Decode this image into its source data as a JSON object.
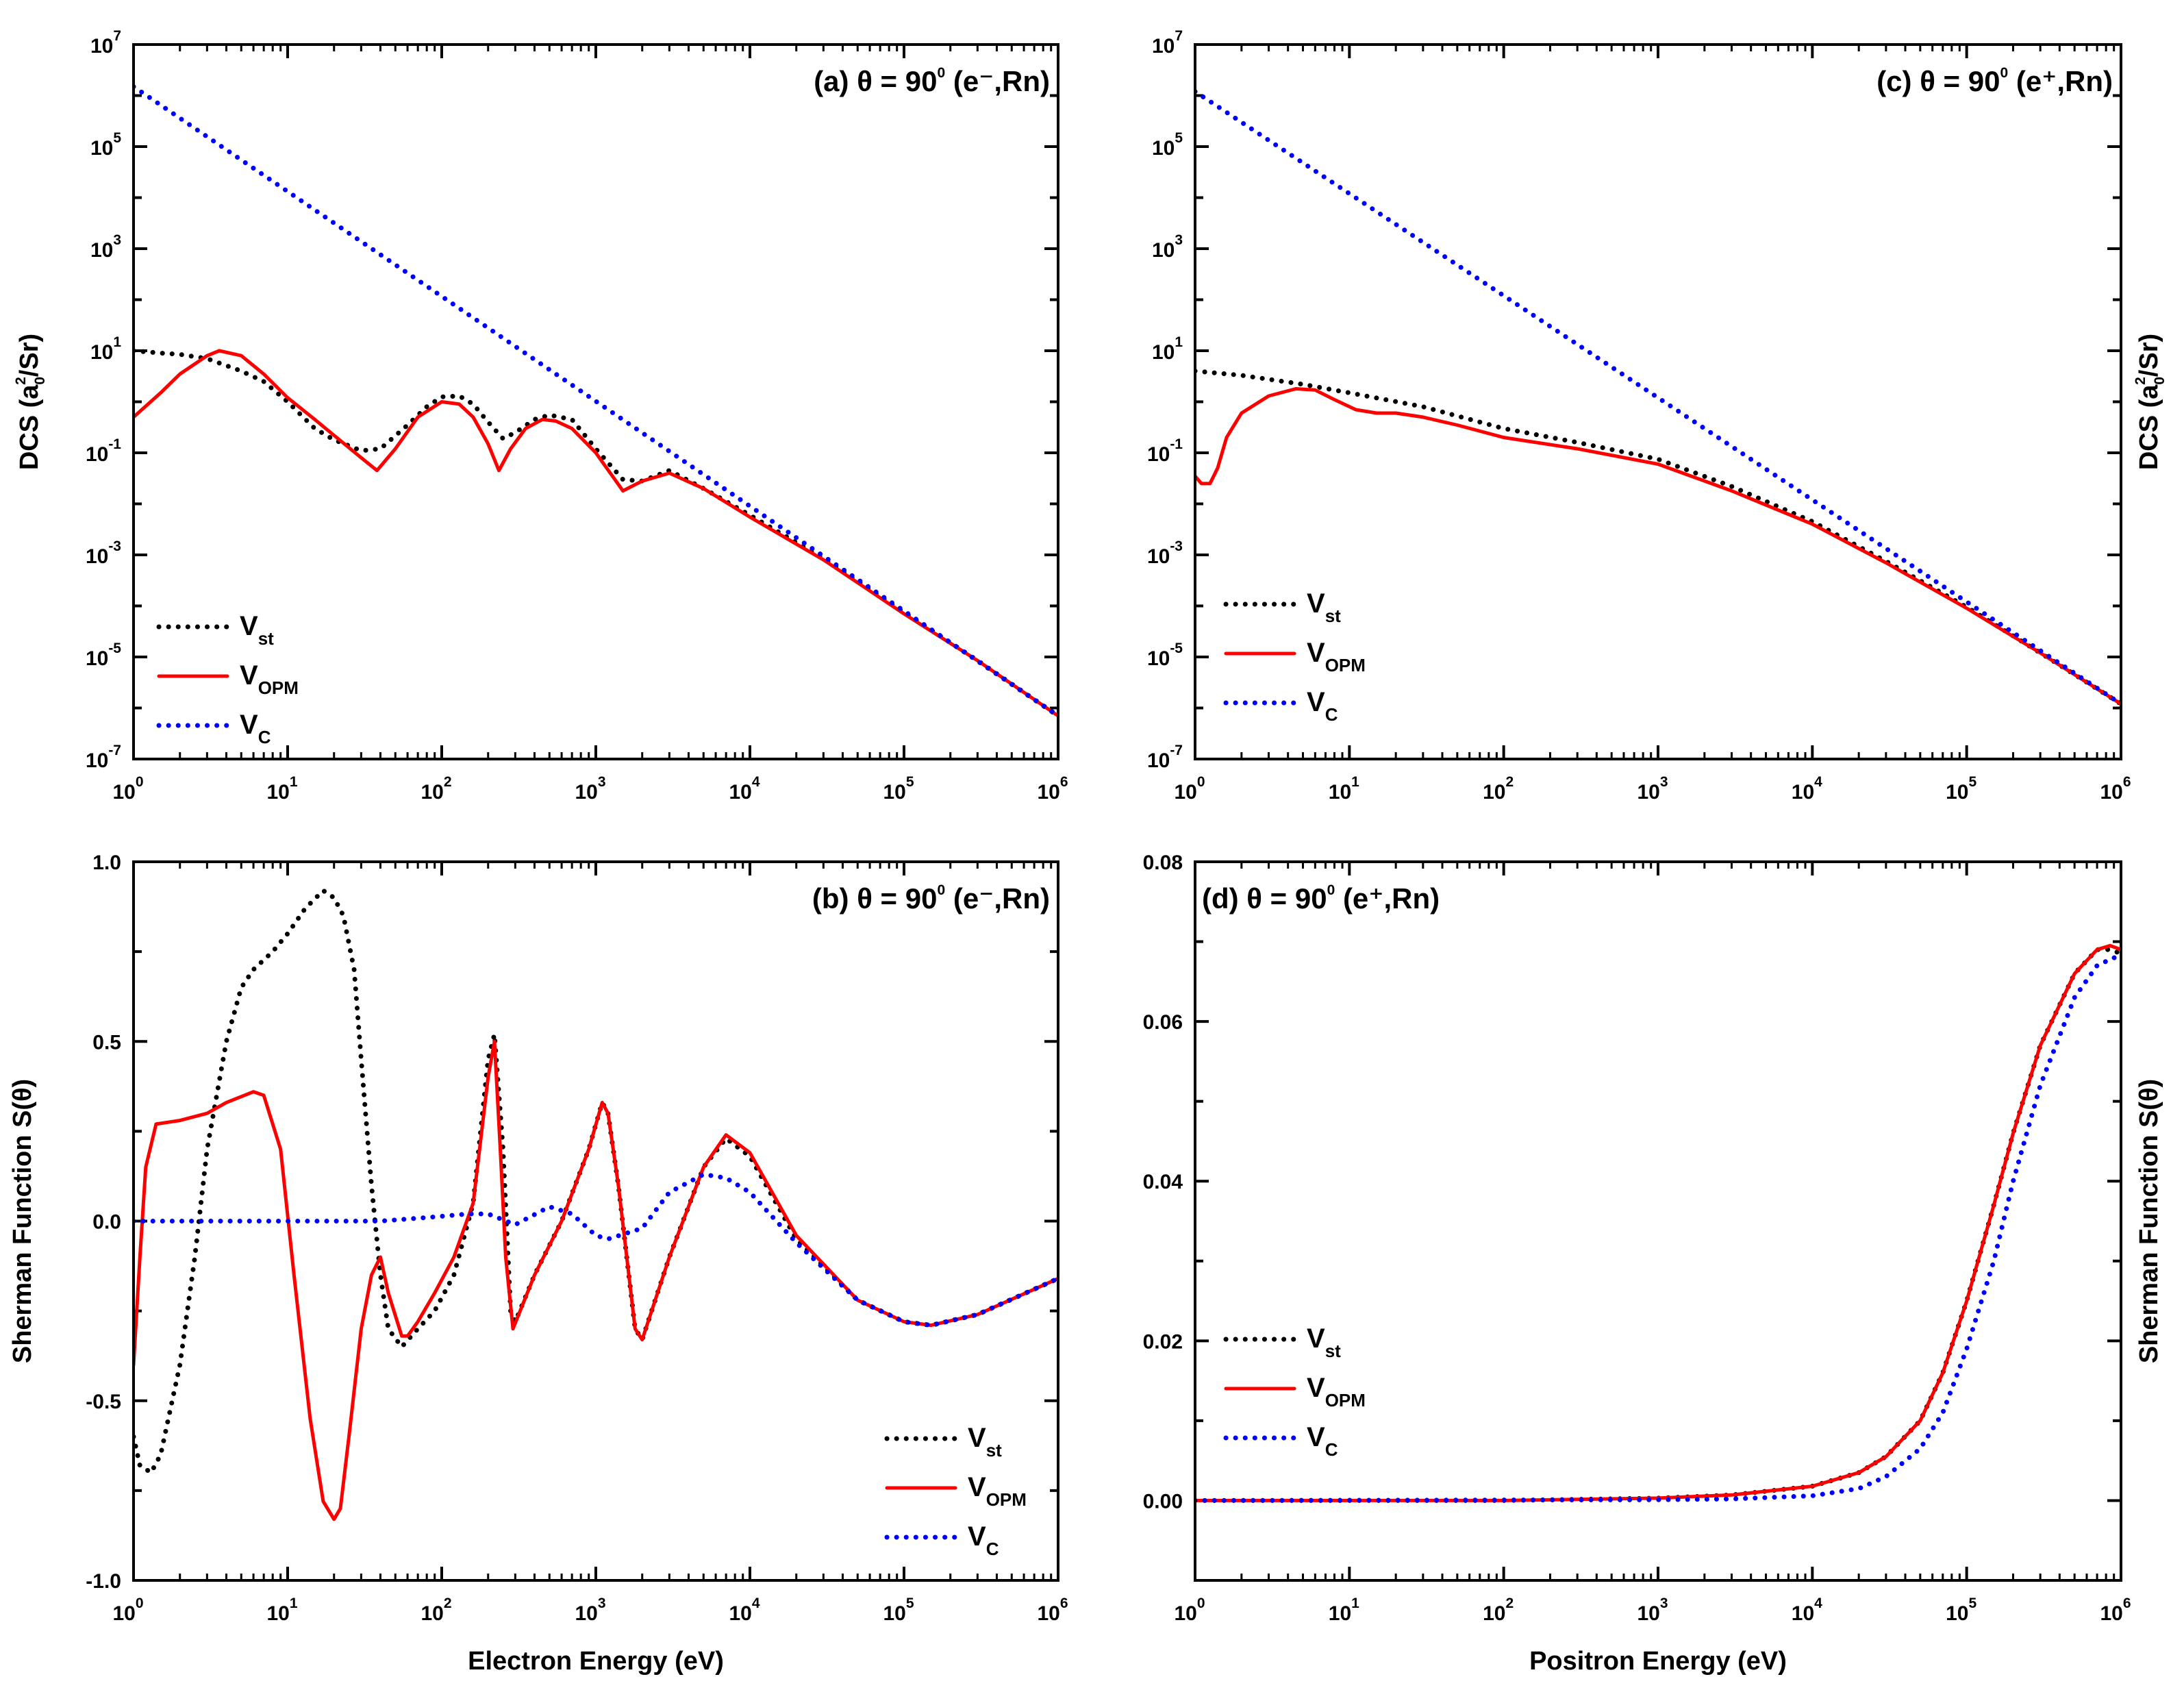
{
  "chart_data": [
    {
      "id": "a",
      "type": "line",
      "title_prefix": "(a) θ = 90",
      "title_sup": "0",
      "title_suffix": " (e⁻,Rn)",
      "xlabel": "",
      "ylabel": "DCS (a",
      "ylabel_sub": "0",
      "ylabel_sup": "2",
      "ylabel_end": "/Sr)",
      "x_scale": "log",
      "y_scale": "log",
      "xlim": [
        1,
        1000000
      ],
      "ylim": [
        1e-07,
        10000000
      ],
      "x_ticks": [
        {
          "base": "10",
          "exp": "0"
        },
        {
          "base": "10",
          "exp": "1"
        },
        {
          "base": "10",
          "exp": "2"
        },
        {
          "base": "10",
          "exp": "3"
        },
        {
          "base": "10",
          "exp": "4"
        },
        {
          "base": "10",
          "exp": "5"
        },
        {
          "base": "10",
          "exp": "6"
        }
      ],
      "y_ticks": [
        {
          "base": "10",
          "exp": "-7"
        },
        {
          "base": "10",
          "exp": "-5"
        },
        {
          "base": "10",
          "exp": "-3"
        },
        {
          "base": "10",
          "exp": "-1"
        },
        {
          "base": "10",
          "exp": "1"
        },
        {
          "base": "10",
          "exp": "3"
        },
        {
          "base": "10",
          "exp": "5"
        },
        {
          "base": "10",
          "exp": "7"
        }
      ],
      "legend_position": "bottom-left",
      "series": [
        {
          "name": "V",
          "sub": "st",
          "color": "#000000",
          "style": "dotted",
          "x": [
            1,
            1.5,
            2,
            3,
            5,
            7,
            10,
            15,
            20,
            30,
            40,
            60,
            80,
            100,
            130,
            160,
            200,
            250,
            300,
            400,
            500,
            700,
            1000,
            1500,
            2000,
            3000,
            5000,
            10000,
            30000,
            100000,
            300000,
            1000000
          ],
          "y": [
            10,
            9,
            8.5,
            7,
            4,
            2.5,
            1,
            0.3,
            0.18,
            0.11,
            0.12,
            0.35,
            0.8,
            1.25,
            1.3,
            0.9,
            0.4,
            0.19,
            0.25,
            0.45,
            0.55,
            0.45,
            0.12,
            0.03,
            0.028,
            0.045,
            0.02,
            0.006,
            0.00085,
            7.5e-05,
            8.5e-06,
            7e-07
          ]
        },
        {
          "name": "V",
          "sub": "OPM",
          "color": "#ff0000",
          "style": "solid",
          "x": [
            1,
            1.5,
            2,
            3,
            3.6,
            5,
            7,
            10,
            15,
            20,
            30,
            38,
            50,
            70,
            100,
            130,
            160,
            200,
            235,
            280,
            350,
            450,
            550,
            700,
            1000,
            1500,
            2000,
            3000,
            5000,
            10000,
            30000,
            100000,
            300000,
            1000000
          ],
          "y": [
            0.5,
            1.5,
            3.5,
            8,
            10,
            8,
            3.5,
            1.2,
            0.45,
            0.22,
            0.08,
            0.045,
            0.12,
            0.5,
            1,
            0.9,
            0.5,
            0.15,
            0.045,
            0.12,
            0.3,
            0.45,
            0.42,
            0.3,
            0.1,
            0.018,
            0.028,
            0.04,
            0.02,
            0.0055,
            0.0008,
            7e-05,
            8.5e-06,
            7e-07
          ]
        },
        {
          "name": "V",
          "sub": "C",
          "color": "#0000ff",
          "style": "dotted",
          "x": [
            1,
            1000000
          ],
          "y": [
            1500000,
            7e-07
          ]
        }
      ]
    },
    {
      "id": "c",
      "type": "line",
      "title_prefix": "(c) θ = 90",
      "title_sup": "0",
      "title_suffix": " (e⁺,Rn)",
      "xlabel": "",
      "ylabel": "DCS (a",
      "ylabel_sub": "0",
      "ylabel_sup": "2",
      "ylabel_end": "/Sr)",
      "x_scale": "log",
      "y_scale": "log",
      "xlim": [
        1,
        1000000
      ],
      "ylim": [
        1e-07,
        10000000
      ],
      "x_ticks": [
        {
          "base": "10",
          "exp": "0"
        },
        {
          "base": "10",
          "exp": "1"
        },
        {
          "base": "10",
          "exp": "2"
        },
        {
          "base": "10",
          "exp": "3"
        },
        {
          "base": "10",
          "exp": "4"
        },
        {
          "base": "10",
          "exp": "5"
        },
        {
          "base": "10",
          "exp": "6"
        }
      ],
      "y_ticks": [
        {
          "base": "10",
          "exp": "-7"
        },
        {
          "base": "10",
          "exp": "-5"
        },
        {
          "base": "10",
          "exp": "-3"
        },
        {
          "base": "10",
          "exp": "-1"
        },
        {
          "base": "10",
          "exp": "1"
        },
        {
          "base": "10",
          "exp": "3"
        },
        {
          "base": "10",
          "exp": "5"
        },
        {
          "base": "10",
          "exp": "7"
        }
      ],
      "legend_position": "bottom-left",
      "series": [
        {
          "name": "V",
          "sub": "st",
          "color": "#000000",
          "style": "dotted",
          "x": [
            1,
            2,
            5,
            10,
            30,
            100,
            300,
            1000,
            3000,
            10000,
            30000,
            100000,
            300000,
            1000000
          ],
          "y": [
            4,
            3.3,
            2.2,
            1.5,
            0.8,
            0.3,
            0.16,
            0.075,
            0.022,
            0.0045,
            0.00075,
            9.5e-05,
            1.2e-05,
            1.2e-06
          ]
        },
        {
          "name": "V",
          "sub": "OPM",
          "color": "#ff0000",
          "style": "solid",
          "x": [
            1,
            1.1,
            1.25,
            1.4,
            1.6,
            2,
            3,
            4.5,
            6,
            8,
            11,
            15,
            20,
            30,
            50,
            100,
            300,
            1000,
            3000,
            10000,
            30000,
            100000,
            300000,
            1000000
          ],
          "y": [
            0.035,
            0.025,
            0.025,
            0.05,
            0.2,
            0.6,
            1.3,
            1.8,
            1.7,
            1.1,
            0.7,
            0.6,
            0.6,
            0.5,
            0.35,
            0.2,
            0.12,
            0.06,
            0.018,
            0.004,
            0.0007,
            9e-05,
            1.2e-05,
            1.2e-06
          ]
        },
        {
          "name": "V",
          "sub": "C",
          "color": "#0000ff",
          "style": "dotted",
          "x": [
            1,
            1000000
          ],
          "y": [
            1200000,
            1.2e-06
          ]
        }
      ]
    },
    {
      "id": "b",
      "type": "line",
      "title_prefix": "(b) θ = 90",
      "title_sup": "0",
      "title_suffix": " (e⁻,Rn)",
      "xlabel": "Electron Energy (eV)",
      "ylabel": "Sherman Function S(θ)",
      "x_scale": "log",
      "y_scale": "linear",
      "xlim": [
        1,
        1000000
      ],
      "ylim": [
        -1.0,
        1.0
      ],
      "x_ticks": [
        {
          "base": "10",
          "exp": "0"
        },
        {
          "base": "10",
          "exp": "1"
        },
        {
          "base": "10",
          "exp": "2"
        },
        {
          "base": "10",
          "exp": "3"
        },
        {
          "base": "10",
          "exp": "4"
        },
        {
          "base": "10",
          "exp": "5"
        },
        {
          "base": "10",
          "exp": "6"
        }
      ],
      "y_ticks": [
        "-1.0",
        "-0.5",
        "0.0",
        "0.5",
        "1.0"
      ],
      "legend_position": "bottom-right",
      "series": [
        {
          "name": "V",
          "sub": "st",
          "color": "#000000",
          "style": "dotted",
          "x": [
            1,
            1.1,
            1.3,
            1.5,
            2,
            2.5,
            3,
            4,
            5,
            6,
            8,
            10,
            13,
            17,
            20,
            23,
            27,
            30,
            35,
            40,
            45,
            55,
            70,
            90,
            120,
            160,
            200,
            220,
            250,
            280,
            300,
            400,
            600,
            900,
            1100,
            1200,
            1400,
            1800,
            2000,
            3000,
            5000,
            7000,
            10000,
            20000,
            50000,
            100000,
            150000,
            300000,
            1000000
          ],
          "y": [
            -0.6,
            -0.68,
            -0.7,
            -0.65,
            -0.4,
            -0.1,
            0.2,
            0.5,
            0.65,
            0.7,
            0.75,
            0.8,
            0.87,
            0.92,
            0.9,
            0.85,
            0.7,
            0.45,
            0.1,
            -0.15,
            -0.3,
            -0.35,
            -0.3,
            -0.25,
            -0.15,
            0.05,
            0.45,
            0.52,
            0.2,
            -0.25,
            -0.28,
            -0.15,
            0.0,
            0.2,
            0.33,
            0.3,
            0.1,
            -0.3,
            -0.33,
            -0.1,
            0.15,
            0.23,
            0.18,
            -0.05,
            -0.22,
            -0.28,
            -0.29,
            -0.26,
            -0.16
          ]
        },
        {
          "name": "V",
          "sub": "OPM",
          "color": "#ff0000",
          "style": "solid",
          "x": [
            1,
            1.1,
            1.2,
            1.4,
            2,
            3,
            4,
            6,
            7,
            9,
            11,
            14,
            17,
            20,
            22,
            25,
            30,
            35,
            40,
            45,
            55,
            60,
            70,
            90,
            120,
            160,
            200,
            220,
            240,
            260,
            290,
            400,
            600,
            900,
            1100,
            1200,
            1400,
            1800,
            2000,
            3000,
            5000,
            7000,
            10000,
            20000,
            50000,
            100000,
            150000,
            300000,
            1000000
          ],
          "y": [
            -0.4,
            -0.1,
            0.15,
            0.27,
            0.28,
            0.3,
            0.33,
            0.36,
            0.35,
            0.2,
            -0.15,
            -0.55,
            -0.78,
            -0.83,
            -0.8,
            -0.6,
            -0.3,
            -0.15,
            -0.1,
            -0.2,
            -0.32,
            -0.32,
            -0.28,
            -0.2,
            -0.1,
            0.05,
            0.4,
            0.5,
            0.2,
            -0.1,
            -0.3,
            -0.15,
            0.0,
            0.2,
            0.33,
            0.3,
            0.1,
            -0.3,
            -0.33,
            -0.1,
            0.15,
            0.24,
            0.19,
            -0.04,
            -0.22,
            -0.28,
            -0.29,
            -0.26,
            -0.16
          ]
        },
        {
          "name": "V",
          "sub": "C",
          "color": "#0000ff",
          "style": "dotted",
          "x": [
            1,
            5,
            10,
            20,
            40,
            80,
            150,
            200,
            300,
            500,
            700,
            1000,
            1200,
            2000,
            3000,
            5000,
            7000,
            10000,
            20000,
            50000,
            100000,
            150000,
            300000,
            1000000
          ],
          "y": [
            0.0,
            0.0,
            0.0,
            0.0,
            0.0,
            0.01,
            0.02,
            0.02,
            -0.01,
            0.04,
            0.02,
            -0.04,
            -0.05,
            -0.02,
            0.08,
            0.13,
            0.12,
            0.08,
            -0.06,
            -0.22,
            -0.28,
            -0.29,
            -0.26,
            -0.16
          ]
        }
      ]
    },
    {
      "id": "d",
      "type": "line",
      "title_prefix": "(d) θ = 90",
      "title_sup": "0",
      "title_suffix": " (e⁺,Rn)",
      "xlabel": "Positron Energy (eV)",
      "ylabel": "Sherman Function S(θ)",
      "x_scale": "log",
      "y_scale": "linear",
      "xlim": [
        1,
        1000000
      ],
      "ylim": [
        -0.01,
        0.08
      ],
      "x_ticks": [
        {
          "base": "10",
          "exp": "0"
        },
        {
          "base": "10",
          "exp": "1"
        },
        {
          "base": "10",
          "exp": "2"
        },
        {
          "base": "10",
          "exp": "3"
        },
        {
          "base": "10",
          "exp": "4"
        },
        {
          "base": "10",
          "exp": "5"
        },
        {
          "base": "10",
          "exp": "6"
        }
      ],
      "y_ticks": [
        "0.00",
        "0.02",
        "0.04",
        "0.06",
        "0.08"
      ],
      "legend_position": "bottom-left",
      "series": [
        {
          "name": "V",
          "sub": "st",
          "color": "#000000",
          "style": "dotted",
          "x": [
            1,
            100,
            1000,
            3000,
            10000,
            20000,
            30000,
            50000,
            70000,
            100000,
            150000,
            200000,
            300000,
            500000,
            700000,
            850000,
            1000000
          ],
          "y": [
            0.0,
            0.0,
            0.0003,
            0.0007,
            0.0018,
            0.0035,
            0.0055,
            0.01,
            0.016,
            0.025,
            0.037,
            0.046,
            0.057,
            0.066,
            0.069,
            0.069,
            0.0685
          ]
        },
        {
          "name": "V",
          "sub": "OPM",
          "color": "#ff0000",
          "style": "solid",
          "x": [
            1,
            100,
            1000,
            3000,
            10000,
            20000,
            30000,
            50000,
            70000,
            100000,
            150000,
            200000,
            300000,
            500000,
            700000,
            850000,
            1000000
          ],
          "y": [
            0.0,
            0.0,
            0.0003,
            0.0007,
            0.0018,
            0.0035,
            0.0055,
            0.01,
            0.016,
            0.025,
            0.037,
            0.046,
            0.057,
            0.066,
            0.069,
            0.0695,
            0.069
          ]
        },
        {
          "name": "V",
          "sub": "C",
          "color": "#0000ff",
          "style": "dotted",
          "x": [
            1,
            1000,
            3000,
            10000,
            20000,
            30000,
            50000,
            70000,
            100000,
            150000,
            200000,
            300000,
            500000,
            700000,
            900000,
            1000000
          ],
          "y": [
            0.0,
            0.0001,
            0.0002,
            0.0006,
            0.0015,
            0.003,
            0.0065,
            0.011,
            0.019,
            0.03,
            0.04,
            0.052,
            0.063,
            0.067,
            0.068,
            0.0675
          ]
        }
      ]
    }
  ]
}
